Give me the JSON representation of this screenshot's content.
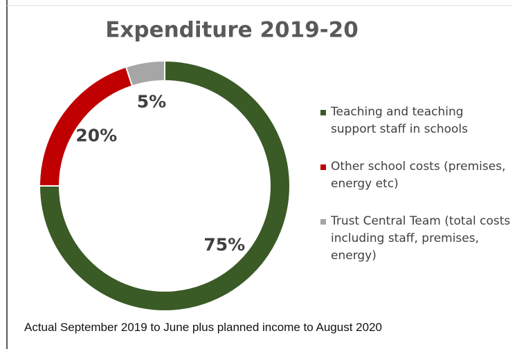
{
  "chart_data": {
    "type": "donut",
    "title": "Expenditure 2019-20",
    "categories": [
      "Teaching and teaching support staff in schools",
      "Other school costs (premises, energy etc)",
      "Trust Central Team (total costs including staff, premises, energy)"
    ],
    "values": [
      75,
      20,
      5
    ],
    "value_labels": [
      "75%",
      "20%",
      "5%"
    ],
    "colors": [
      "#3a5a26",
      "#c00000",
      "#a6a6a6"
    ],
    "legend": "right",
    "caption": "Actual September 2019 to June plus planned income to August 2020"
  }
}
